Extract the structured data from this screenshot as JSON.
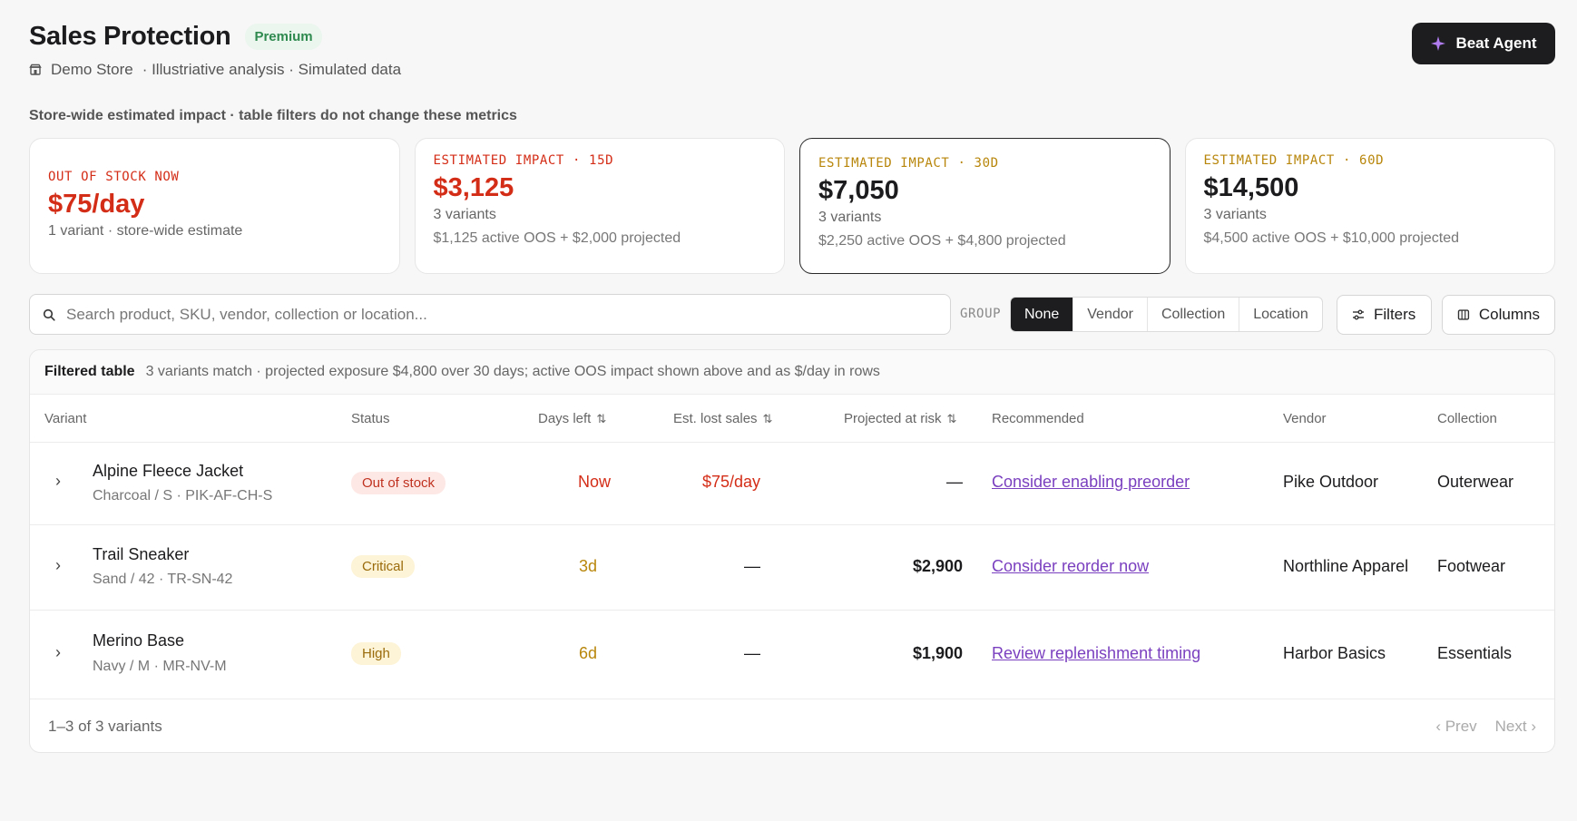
{
  "header": {
    "title": "Sales Protection",
    "badge": "Premium",
    "store": "Demo Store",
    "meta": "· Illustriative analysis · Simulated data",
    "agent_button": "Beat Agent"
  },
  "note": "Store-wide estimated impact · table filters do not change these metrics",
  "cards": [
    {
      "label": "OUT OF STOCK NOW",
      "value": "$75/day",
      "sub": "1 variant · store-wide estimate",
      "sub2": ""
    },
    {
      "label": "ESTIMATED IMPACT · 15D",
      "value": "$3,125",
      "sub": "3 variants",
      "sub2": "$1,125 active OOS + $2,000 projected"
    },
    {
      "label": "ESTIMATED IMPACT · 30D",
      "value": "$7,050",
      "sub": "3 variants",
      "sub2": "$2,250 active OOS + $4,800 projected"
    },
    {
      "label": "ESTIMATED IMPACT · 60D",
      "value": "$14,500",
      "sub": "3 variants",
      "sub2": "$4,500 active OOS + $10,000 projected"
    }
  ],
  "colors": {
    "red": "#d42d17",
    "gold": "#b8860b",
    "link": "#7a3fbf",
    "dark": "#1d1d1f"
  },
  "search": {
    "placeholder": "Search product, SKU, vendor, collection or location..."
  },
  "group": {
    "label": "GROUP",
    "options": [
      "None",
      "Vendor",
      "Collection",
      "Location"
    ],
    "selected": "None"
  },
  "buttons": {
    "filters": "Filters",
    "columns": "Columns"
  },
  "table": {
    "title": "Filtered table",
    "description": "3 variants match · projected exposure $4,800 over 30 days; active OOS impact shown above and as $/day in rows",
    "columns": [
      "Variant",
      "Status",
      "Days left",
      "Est. lost sales",
      "Projected at risk",
      "Recommended",
      "Vendor",
      "Collection"
    ],
    "rows": [
      {
        "name": "Alpine Fleece Jacket",
        "sub": "Charcoal / S · PIK-AF-CH-S",
        "status": "Out of stock",
        "days": "Now",
        "lost": "$75/day",
        "risk": "—",
        "reco": "Consider enabling preorder",
        "vendor": "Pike Outdoor",
        "collection": "Outerwear"
      },
      {
        "name": "Trail Sneaker",
        "sub": "Sand / 42 · TR-SN-42",
        "status": "Critical",
        "days": "3d",
        "lost": "—",
        "risk": "$2,900",
        "reco": "Consider reorder now",
        "vendor": "Northline Apparel",
        "collection": "Footwear"
      },
      {
        "name": "Merino Base",
        "sub": "Navy / M · MR-NV-M",
        "status": "High",
        "days": "6d",
        "lost": "—",
        "risk": "$1,900",
        "reco": "Review replenishment timing",
        "vendor": "Harbor Basics",
        "collection": "Essentials"
      }
    ],
    "footer": {
      "count": "1–3 of 3 variants",
      "prev": "‹ Prev",
      "next": "Next ›"
    }
  }
}
